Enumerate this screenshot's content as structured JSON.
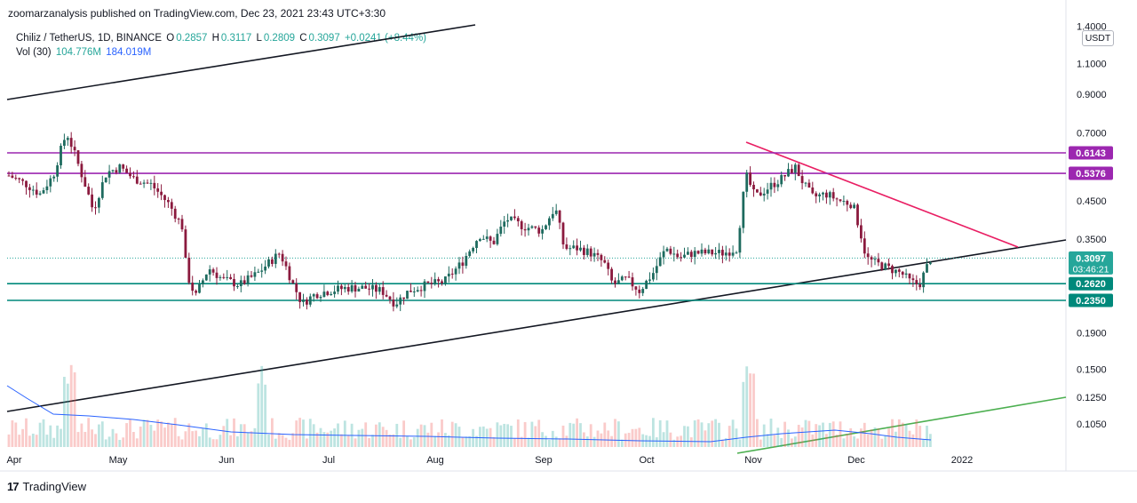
{
  "header": "zoomarzanalysis published on TradingView.com, Dec 23, 2021 23:43 UTC+3:30",
  "legend": {
    "symbol": "Chiliz / TetherUS, 1D, BINANCE",
    "o_label": "O",
    "o": "0.2857",
    "h_label": "H",
    "h": "0.3117",
    "l_label": "L",
    "l": "0.2809",
    "c_label": "C",
    "c": "0.3097",
    "change": "+0.0241 (+8.44%)",
    "vol_label": "Vol (30)",
    "vol": "104.776M",
    "vol_ma": "184.019M"
  },
  "currency_button": "USDT",
  "footer": {
    "brand": "TradingView",
    "logo": "tv-logo-icon"
  },
  "colors": {
    "up": "#26a69a",
    "down": "#ef5350",
    "candle_up": "#1e6b5f",
    "candle_down": "#8b1a3e",
    "purple": "#9c27b0",
    "teal": "#00897b",
    "pink": "#e91e63",
    "black": "#131722",
    "green": "#4caf50",
    "ma": "#2962ff"
  },
  "chart_data": {
    "type": "candlestick",
    "symbol": "CHZUSDT",
    "timeframe": "1D",
    "y_scale": "log",
    "y_ticks": [
      "1.4000",
      "1.1000",
      "0.9000",
      "0.7000",
      "0.4500",
      "0.3500",
      "0.1900",
      "0.1500",
      "0.1250",
      "0.1050"
    ],
    "x_ticks": [
      "Apr",
      "May",
      "Jun",
      "Jul",
      "Aug",
      "Sep",
      "Oct",
      "Nov",
      "Dec",
      "2022"
    ],
    "price_labels": [
      {
        "value": "0.6143",
        "color": "#9c27b0"
      },
      {
        "value": "0.5376",
        "color": "#9c27b0"
      },
      {
        "value": "0.3097",
        "color": "#26a69a",
        "countdown": "03:46:21"
      },
      {
        "value": "0.2620",
        "color": "#00897b"
      },
      {
        "value": "0.2350",
        "color": "#00897b"
      }
    ],
    "horizontal_levels": [
      {
        "value": 0.6143,
        "color": "#9c27b0"
      },
      {
        "value": 0.5376,
        "color": "#9c27b0"
      },
      {
        "value": 0.262,
        "color": "#00897b"
      },
      {
        "value": 0.235,
        "color": "#00897b"
      }
    ],
    "trendlines": [
      {
        "color": "#131722",
        "name": "upper-channel"
      },
      {
        "color": "#131722",
        "name": "lower-channel"
      },
      {
        "color": "#e91e63",
        "name": "descending-resistance"
      },
      {
        "color": "#4caf50",
        "name": "volume-trend"
      }
    ],
    "last_close": 0.3097
  }
}
